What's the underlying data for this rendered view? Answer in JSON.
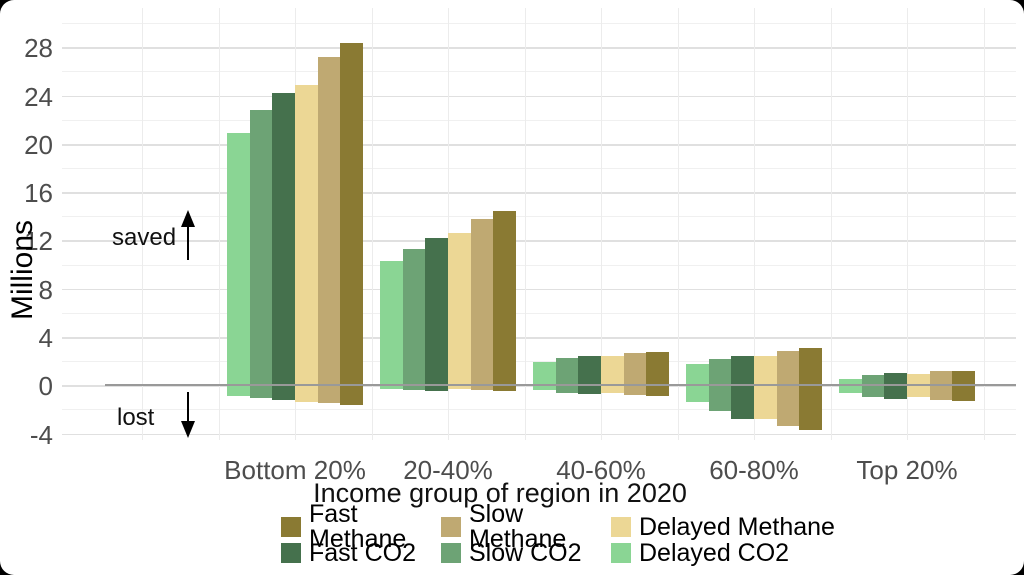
{
  "annotations": {
    "saved": "saved",
    "lost": "lost"
  },
  "chart_data": {
    "type": "bar",
    "title": "",
    "xlabel": "Income group of region in 2020",
    "ylabel": "Millions",
    "ylim": [
      -4.6,
      31.3
    ],
    "y_major_ticks": [
      -4,
      0,
      4,
      8,
      12,
      16,
      20,
      24,
      28
    ],
    "y_minor_step": 2,
    "grid": true,
    "legend_position": "bottom",
    "baseline": 0,
    "categories": [
      "Bottom 20%",
      "20-40%",
      "40-60%",
      "60-80%",
      "Top 20%"
    ],
    "series": [
      {
        "name": "Delayed CO2",
        "color": "#8ad594",
        "saved": [
          20.9,
          10.3,
          1.95,
          1.75,
          0.55
        ],
        "lost": [
          -0.9,
          -0.3,
          -0.35,
          -1.35,
          -0.65
        ]
      },
      {
        "name": "Slow CO2",
        "color": "#6da375",
        "saved": [
          22.8,
          11.3,
          2.25,
          2.15,
          0.85
        ],
        "lost": [
          -1.05,
          -0.35,
          -0.65,
          -2.1,
          -0.95
        ]
      },
      {
        "name": "Fast CO2",
        "color": "#45714d",
        "saved": [
          24.2,
          12.2,
          2.45,
          2.45,
          1.05
        ],
        "lost": [
          -1.2,
          -0.45,
          -0.75,
          -2.8,
          -1.15
        ]
      },
      {
        "name": "Delayed Methane",
        "color": "#ecd795",
        "saved": [
          24.9,
          12.65,
          2.4,
          2.4,
          0.95
        ],
        "lost": [
          -1.35,
          -0.3,
          -0.65,
          -2.8,
          -0.95
        ]
      },
      {
        "name": "Slow Methane",
        "color": "#bfa972",
        "saved": [
          27.2,
          13.8,
          2.65,
          2.85,
          1.2
        ],
        "lost": [
          -1.45,
          -0.4,
          -0.8,
          -3.35,
          -1.2
        ]
      },
      {
        "name": "Fast Methane",
        "color": "#8a7a33",
        "saved": [
          28.4,
          14.45,
          2.8,
          3.05,
          1.2
        ],
        "lost": [
          -1.6,
          -0.5,
          -0.9,
          -3.7,
          -1.3
        ]
      }
    ],
    "legend_rows": [
      [
        "Fast Methane",
        "Slow Methane",
        "Delayed Methane"
      ],
      [
        "Fast CO2",
        "Slow CO2",
        "Delayed CO2"
      ]
    ]
  }
}
